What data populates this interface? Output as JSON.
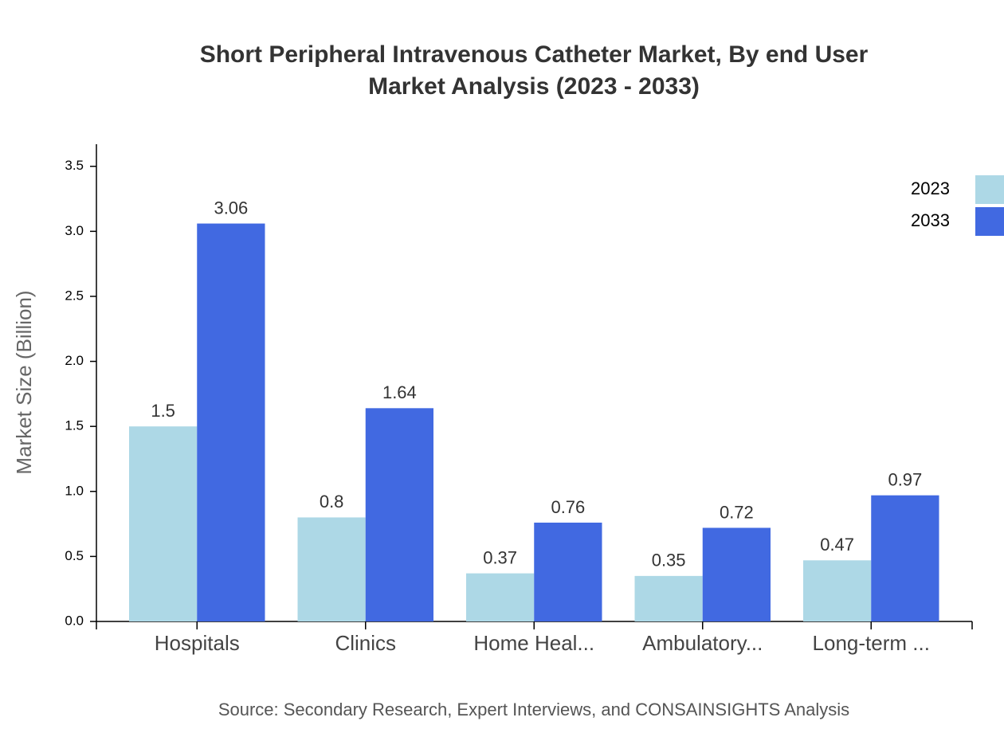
{
  "chart_data": {
    "type": "bar",
    "title": [
      "Short Peripheral Intravenous Catheter Market, By end User",
      "Market Analysis (2023 - 2033)"
    ],
    "y_label": "Market Size (Billion)",
    "source": "Source: Secondary Research, Expert Interviews, and CONSAINSIGHTS Analysis",
    "categories": [
      "Hospitals",
      "Clinics",
      "Home Heal...",
      "Ambulatory...",
      "Long-term ..."
    ],
    "series": [
      {
        "name": "2023",
        "color": "#add8e6",
        "values": [
          1.5,
          0.8,
          0.37,
          0.35,
          0.47
        ]
      },
      {
        "name": "2033",
        "color": "#4169e1",
        "values": [
          3.06,
          1.64,
          0.76,
          0.72,
          0.97
        ]
      }
    ],
    "ylim": [
      0,
      3.67
    ],
    "yticks": [
      {
        "value": 0,
        "label": "0.0"
      },
      0.5,
      {
        "value": 1,
        "label": "1.0"
      },
      1.5,
      {
        "value": 2,
        "label": "2.0"
      },
      2.5,
      {
        "value": 3,
        "label": "3.0"
      },
      3.5
    ],
    "grid": false,
    "legend": "top-right"
  }
}
